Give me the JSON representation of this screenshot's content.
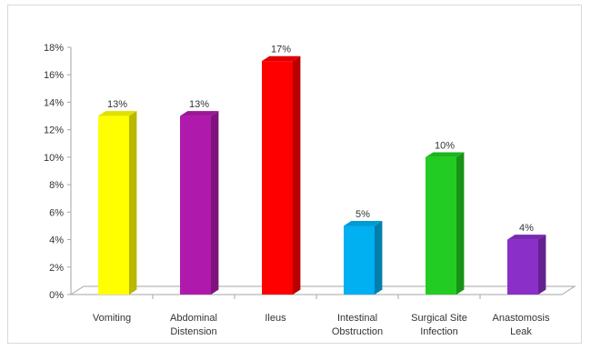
{
  "chart_data": {
    "type": "bar",
    "categories": [
      [
        "Vomiting"
      ],
      [
        "Abdominal",
        "Distension"
      ],
      [
        "Ileus"
      ],
      [
        "Intestinal",
        "Obstruction"
      ],
      [
        "Surgical Site",
        "Infection"
      ],
      [
        "Anastomosis",
        "Leak"
      ]
    ],
    "values": [
      13,
      13,
      17,
      5,
      10,
      4
    ],
    "data_labels": [
      "13%",
      "13%",
      "17%",
      "5%",
      "10%",
      "4%"
    ],
    "colors": [
      "#ffff00",
      "#b01aac",
      "#ff0000",
      "#00b0f0",
      "#22cc22",
      "#8b2fc9"
    ],
    "ylim": [
      0,
      18
    ],
    "yticks": [
      "0%",
      "2%",
      "4%",
      "6%",
      "8%",
      "10%",
      "12%",
      "14%",
      "16%",
      "18%"
    ],
    "grid": false,
    "title": "",
    "xlabel": "",
    "ylabel": ""
  }
}
